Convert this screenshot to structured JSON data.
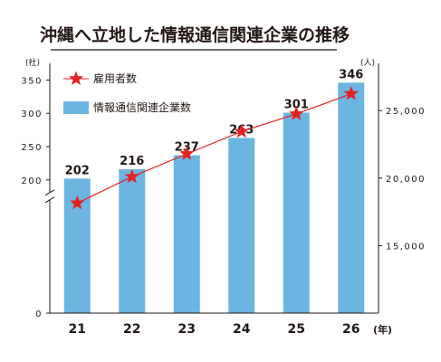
{
  "chart_data": {
    "type": "bar",
    "title": "沖縄へ立地した情報通信関連企業の推移",
    "categories": [
      "21",
      "22",
      "23",
      "24",
      "25",
      "26"
    ],
    "x_unit": "(年)",
    "series": [
      {
        "name": "情報通信関連企業数",
        "type": "bar",
        "axis": "left",
        "values": [
          202,
          216,
          237,
          263,
          301,
          346
        ],
        "color": "#6bb5e0"
      },
      {
        "name": "雇用者数",
        "type": "line",
        "axis": "right",
        "values": [
          18150,
          20100,
          21800,
          23450,
          24750,
          26250
        ],
        "color": "#e5201f"
      }
    ],
    "y_left": {
      "unit": "(社)",
      "ylim": [
        0,
        375
      ],
      "ticks": [
        "0",
        "200",
        "250",
        "300",
        "350"
      ]
    },
    "y_right": {
      "unit": "(人)",
      "ylim": [
        10000,
        28500
      ],
      "ticks": [
        "15,000",
        "20,000",
        "25,000"
      ]
    },
    "legend_position": "top-left",
    "grid": false
  }
}
